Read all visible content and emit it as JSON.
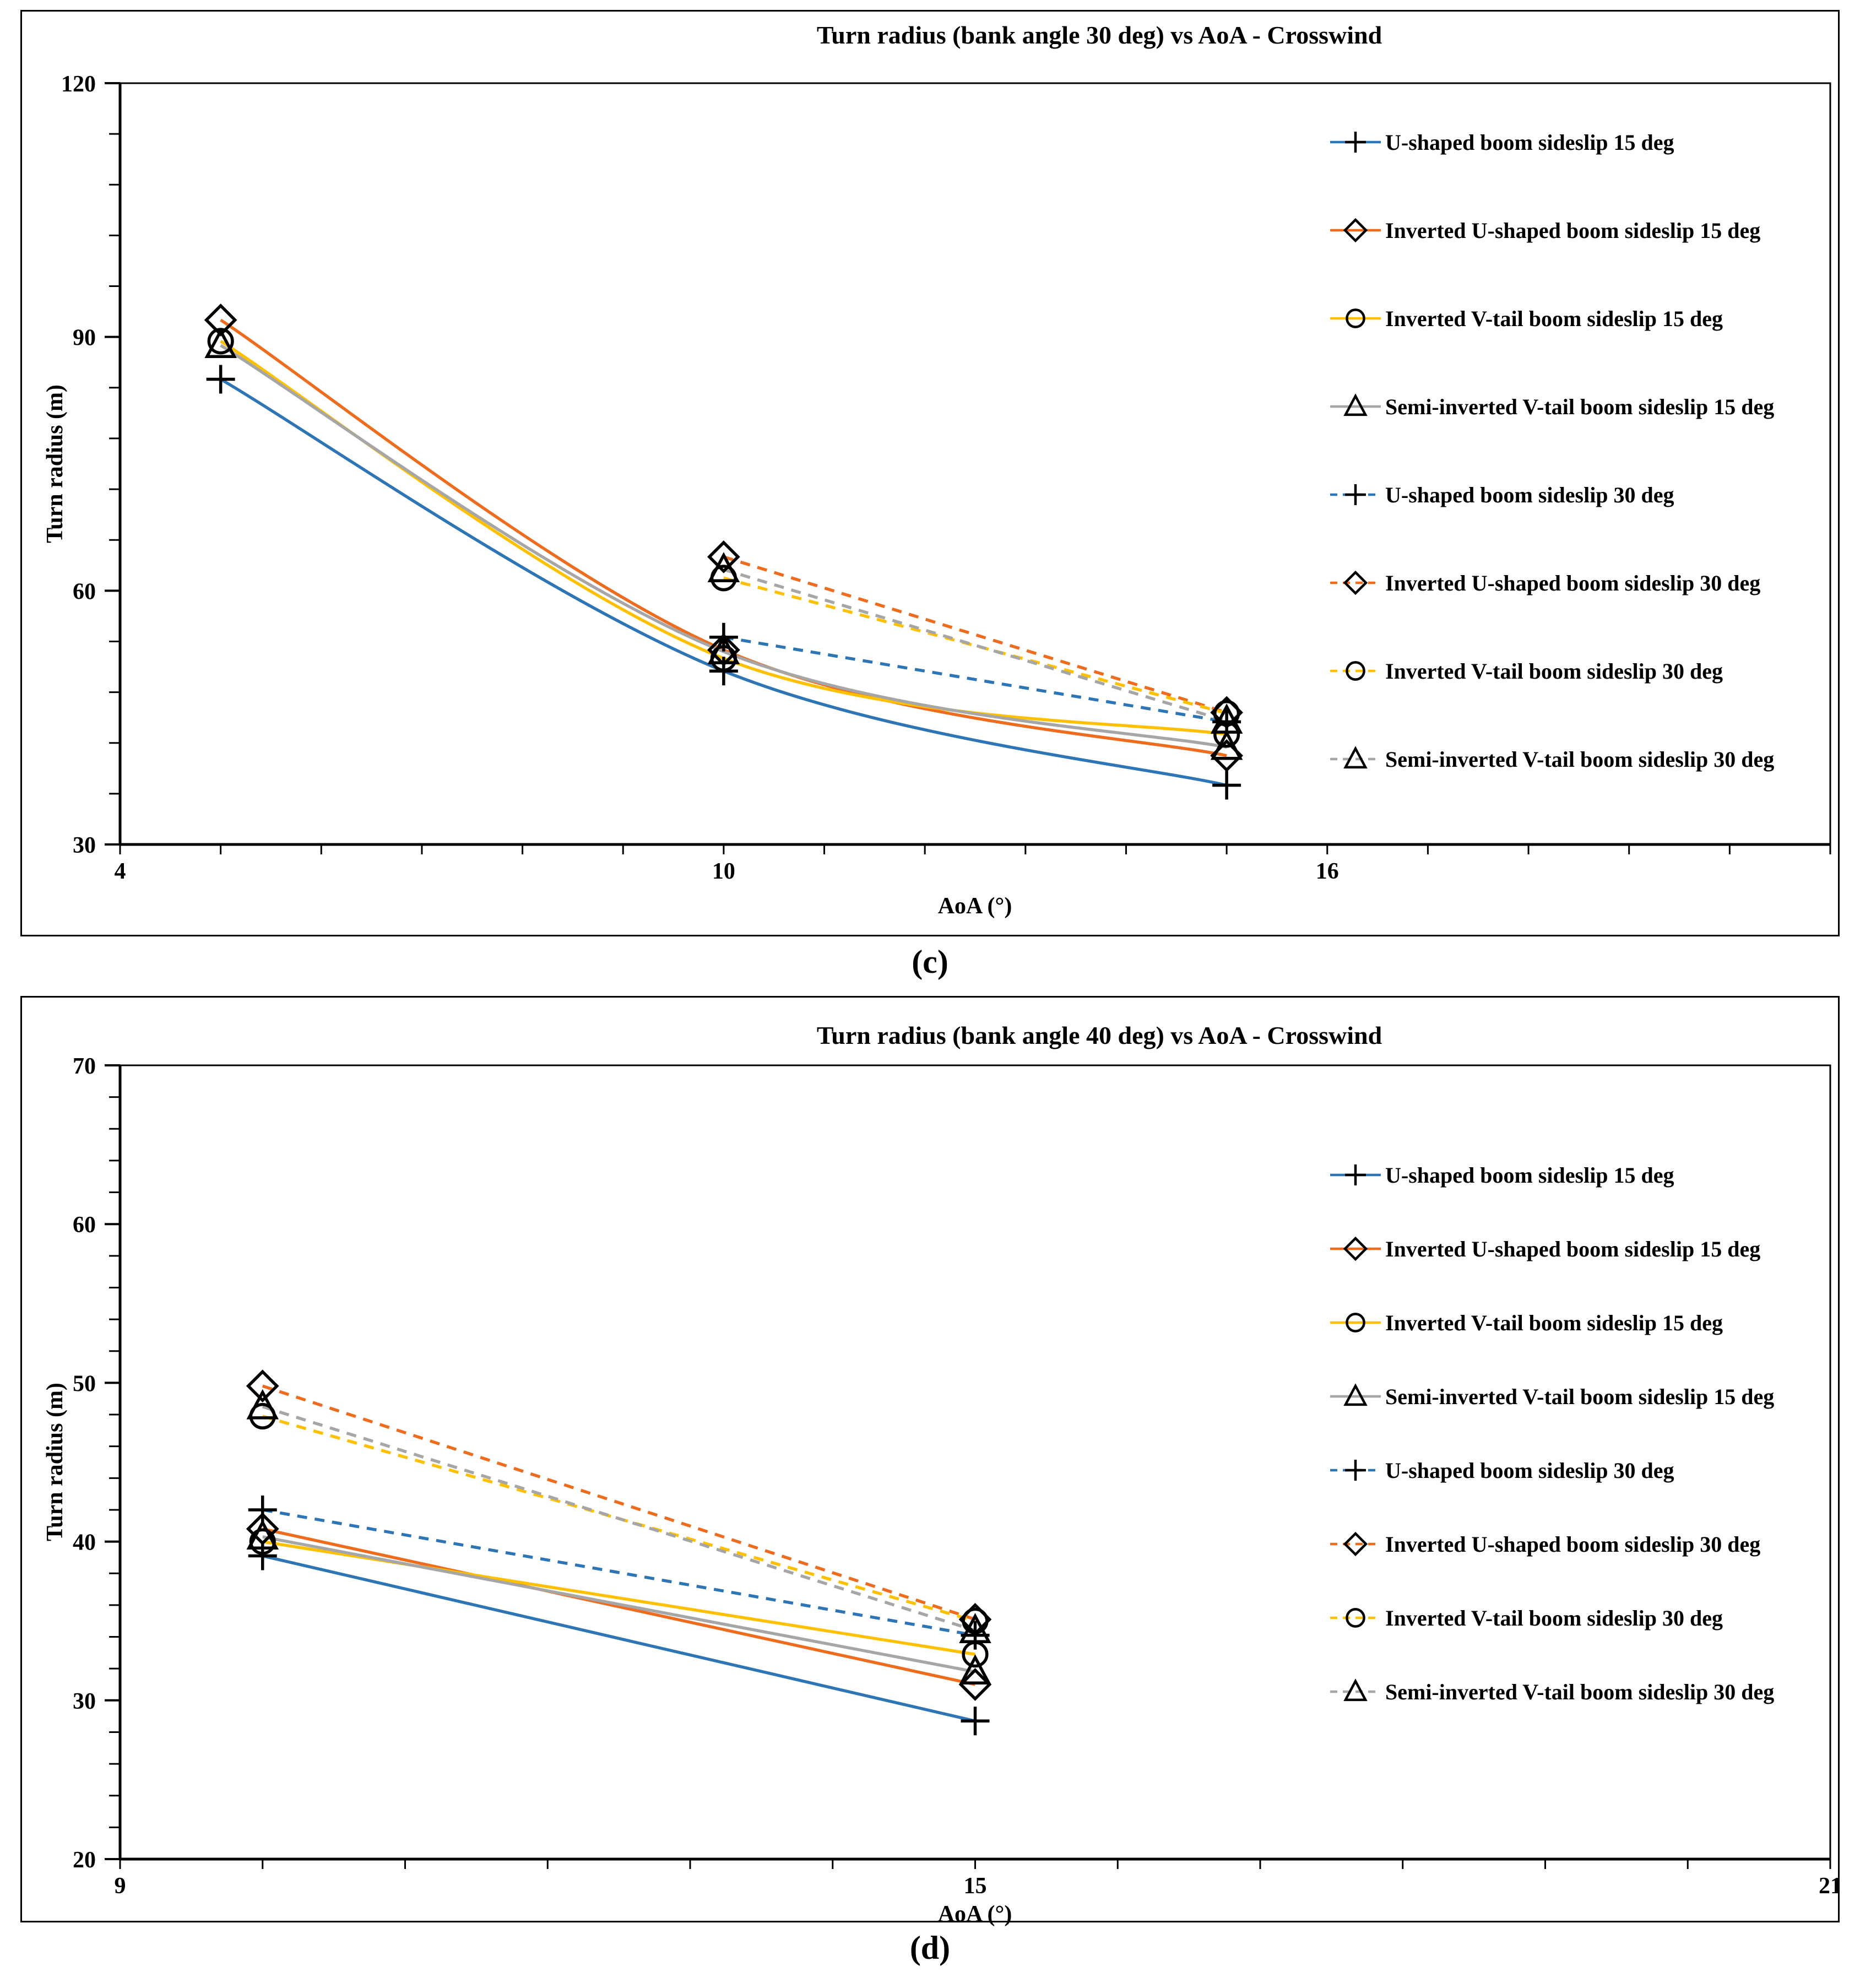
{
  "page": {
    "captions": {
      "c": "(c)",
      "d": "(d)"
    }
  },
  "colors": {
    "blue": "#2E75B6",
    "orange": "#ED6C1E",
    "yellow": "#FFC000",
    "gray": "#A6A6A6",
    "marker_outline": "#000000",
    "frame": "#000000",
    "background": "#FFFFFF"
  },
  "chart_data": [
    {
      "id": "c",
      "type": "line",
      "title": "Turn radius (bank angle 30 deg) vs AoA - Crosswind",
      "xlabel": "AoA (°)",
      "ylabel": "Turn radius (m)",
      "xlim": [
        4,
        21
      ],
      "ylim": [
        30,
        120
      ],
      "xticks": [
        4,
        10,
        16
      ],
      "yticks": [
        30,
        60,
        90,
        120
      ],
      "x_minor_step": 1,
      "y_minor_step": 6,
      "grid": false,
      "legend_position": "right-inside",
      "series": [
        {
          "name": "U-shaped boom sideslip 15 deg",
          "color_key": "blue",
          "dash": "solid",
          "marker": "plus",
          "x": [
            5,
            10,
            15
          ],
          "y": [
            85,
            50.5,
            37
          ]
        },
        {
          "name": "Inverted U-shaped boom sideslip 15 deg",
          "color_key": "orange",
          "dash": "solid",
          "marker": "diamond",
          "x": [
            5,
            10,
            15
          ],
          "y": [
            92,
            53,
            40.5
          ]
        },
        {
          "name": "Inverted V-tail boom sideslip 15 deg",
          "color_key": "yellow",
          "dash": "solid",
          "marker": "circle",
          "x": [
            5,
            10,
            15
          ],
          "y": [
            89.5,
            52,
            43
          ]
        },
        {
          "name": "Semi-inverted V-tail boom sideslip 15 deg",
          "color_key": "gray",
          "dash": "solid",
          "marker": "triangle",
          "x": [
            5,
            10,
            15
          ],
          "y": [
            89,
            52.8,
            41.5
          ]
        },
        {
          "name": "U-shaped boom sideslip 30 deg",
          "color_key": "blue",
          "dash": "dashed",
          "marker": "plus",
          "x": [
            10,
            15
          ],
          "y": [
            54.5,
            44.5
          ]
        },
        {
          "name": "Inverted U-shaped boom sideslip 30 deg",
          "color_key": "orange",
          "dash": "dashed",
          "marker": "diamond",
          "x": [
            10,
            15
          ],
          "y": [
            64,
            45.6
          ]
        },
        {
          "name": "Inverted V-tail boom sideslip 30 deg",
          "color_key": "yellow",
          "dash": "dashed",
          "marker": "circle",
          "x": [
            10,
            15
          ],
          "y": [
            61.5,
            45.5
          ]
        },
        {
          "name": "Semi-inverted V-tail boom sideslip 30 deg",
          "color_key": "gray",
          "dash": "dashed",
          "marker": "triangle",
          "x": [
            10,
            15
          ],
          "y": [
            62.5,
            44.6
          ]
        }
      ]
    },
    {
      "id": "d",
      "type": "line",
      "title": "Turn radius (bank angle 40 deg) vs AoA - Crosswind",
      "xlabel": "AoA (°)",
      "ylabel": "Turn radius (m)",
      "xlim": [
        9,
        21
      ],
      "ylim": [
        20,
        70
      ],
      "xticks": [
        9,
        15,
        21
      ],
      "yticks": [
        20,
        30,
        40,
        50,
        60,
        70
      ],
      "x_minor_step": 1,
      "y_minor_step": 2,
      "grid": false,
      "legend_position": "right-inside",
      "series": [
        {
          "name": "U-shaped boom sideslip 15 deg",
          "color_key": "blue",
          "dash": "solid",
          "marker": "plus",
          "x": [
            10,
            15
          ],
          "y": [
            39.1,
            28.7
          ]
        },
        {
          "name": "Inverted U-shaped boom sideslip 15 deg",
          "color_key": "orange",
          "dash": "solid",
          "marker": "diamond",
          "x": [
            10,
            15
          ],
          "y": [
            40.8,
            31.0
          ]
        },
        {
          "name": "Inverted V-tail boom sideslip 15 deg",
          "color_key": "yellow",
          "dash": "solid",
          "marker": "circle",
          "x": [
            10,
            15
          ],
          "y": [
            40.0,
            32.9
          ]
        },
        {
          "name": "Semi-inverted V-tail boom sideslip 15 deg",
          "color_key": "gray",
          "dash": "solid",
          "marker": "triangle",
          "x": [
            10,
            15
          ],
          "y": [
            40.3,
            31.8
          ]
        },
        {
          "name": "U-shaped boom sideslip 30 deg",
          "color_key": "blue",
          "dash": "dashed",
          "marker": "plus",
          "x": [
            10,
            15
          ],
          "y": [
            42.0,
            34.1
          ]
        },
        {
          "name": "Inverted U-shaped boom sideslip 30 deg",
          "color_key": "orange",
          "dash": "dashed",
          "marker": "diamond",
          "x": [
            10,
            15
          ],
          "y": [
            49.8,
            35.1
          ]
        },
        {
          "name": "Inverted V-tail boom sideslip 30 deg",
          "color_key": "yellow",
          "dash": "dashed",
          "marker": "circle",
          "x": [
            10,
            15
          ],
          "y": [
            47.9,
            35.0
          ]
        },
        {
          "name": "Semi-inverted V-tail boom sideslip 30 deg",
          "color_key": "gray",
          "dash": "dashed",
          "marker": "triangle",
          "x": [
            10,
            15
          ],
          "y": [
            48.5,
            34.4
          ]
        }
      ]
    }
  ]
}
